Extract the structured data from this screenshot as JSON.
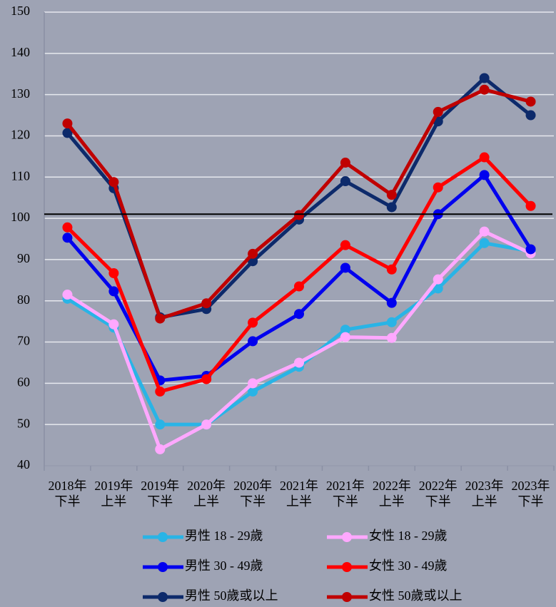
{
  "chart_data": {
    "type": "line",
    "categories": [
      [
        "2018年",
        "下半"
      ],
      [
        "2019年",
        "上半"
      ],
      [
        "2019年",
        "下半"
      ],
      [
        "2020年",
        "上半"
      ],
      [
        "2020年",
        "下半"
      ],
      [
        "2021年",
        "上半"
      ],
      [
        "2021年",
        "下半"
      ],
      [
        "2022年",
        "上半"
      ],
      [
        "2022年",
        "下半"
      ],
      [
        "2023年",
        "上半"
      ],
      [
        "2023年",
        "下半"
      ]
    ],
    "series": [
      {
        "name": "男性 18 - 29歲",
        "color": "#29b4e6",
        "values": [
          80.5,
          73.5,
          50,
          50,
          58,
          64,
          73,
          74.8,
          83,
          94,
          92
        ]
      },
      {
        "name": "女性 18 - 29歲",
        "color": "#ffa8ff",
        "values": [
          81.5,
          74.3,
          44,
          50,
          60,
          65,
          71.2,
          71,
          85.2,
          96.8,
          91.5
        ]
      },
      {
        "name": "男性 30 - 49歲",
        "color": "#0000ee",
        "values": [
          95.3,
          82.3,
          60.7,
          61.8,
          70.2,
          76.8,
          88,
          79.5,
          101,
          110.5,
          92.5
        ]
      },
      {
        "name": "女性 30 - 49歲",
        "color": "#ff0000",
        "values": [
          97.8,
          86.7,
          58,
          61,
          74.7,
          83.5,
          93.5,
          87.6,
          107.5,
          114.8,
          103
        ]
      },
      {
        "name": "男性 50歲或以上",
        "color": "#0d2a6b",
        "values": [
          120.7,
          107.3,
          76,
          78,
          89.6,
          99.7,
          109,
          102.7,
          123.5,
          134,
          125
        ]
      },
      {
        "name": "女性 50歲或以上",
        "color": "#c00000",
        "values": [
          123,
          108.8,
          75.7,
          79.4,
          91.4,
          100.8,
          113.5,
          105.7,
          125.8,
          131.2,
          128.3
        ]
      }
    ],
    "reference_line": 101,
    "ylim": [
      40,
      150
    ],
    "yticks": [
      40,
      50,
      60,
      70,
      80,
      90,
      100,
      110,
      120,
      130,
      140,
      150
    ],
    "grid": true
  }
}
